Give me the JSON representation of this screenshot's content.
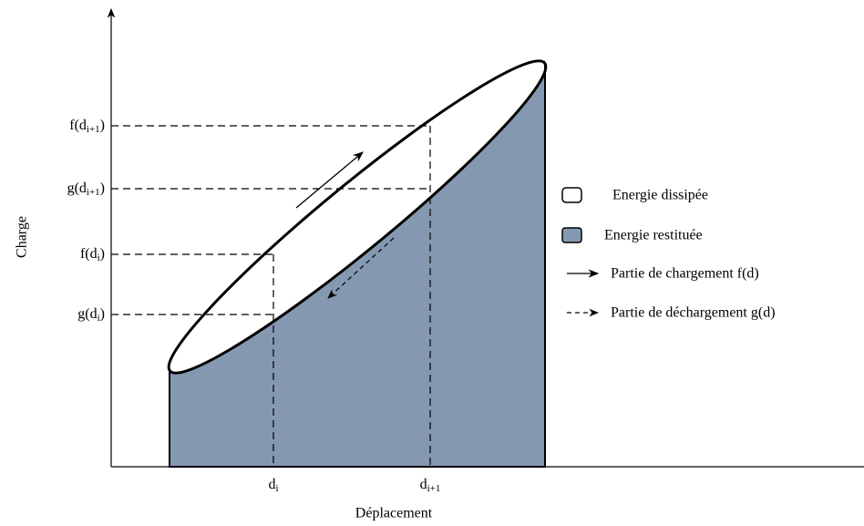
{
  "axes": {
    "y_label": "Charge",
    "x_label": "Déplacement"
  },
  "y_labels": [
    {
      "base": "f(d",
      "sub": "i+1",
      "end": ")"
    },
    {
      "base": "g(d",
      "sub": "i+1",
      "end": ")"
    },
    {
      "base": "f(d",
      "sub": "i",
      "end": ")"
    },
    {
      "base": "g(d",
      "sub": "i",
      "end": ")"
    }
  ],
  "x_labels": [
    {
      "base": "d",
      "sub": "i"
    },
    {
      "base": "d",
      "sub": "i+1"
    }
  ],
  "legend": [
    "Energie dissipée",
    "Energie restituée",
    "Partie de chargement f(d)",
    "Partie de déchargement g(d)"
  ]
}
